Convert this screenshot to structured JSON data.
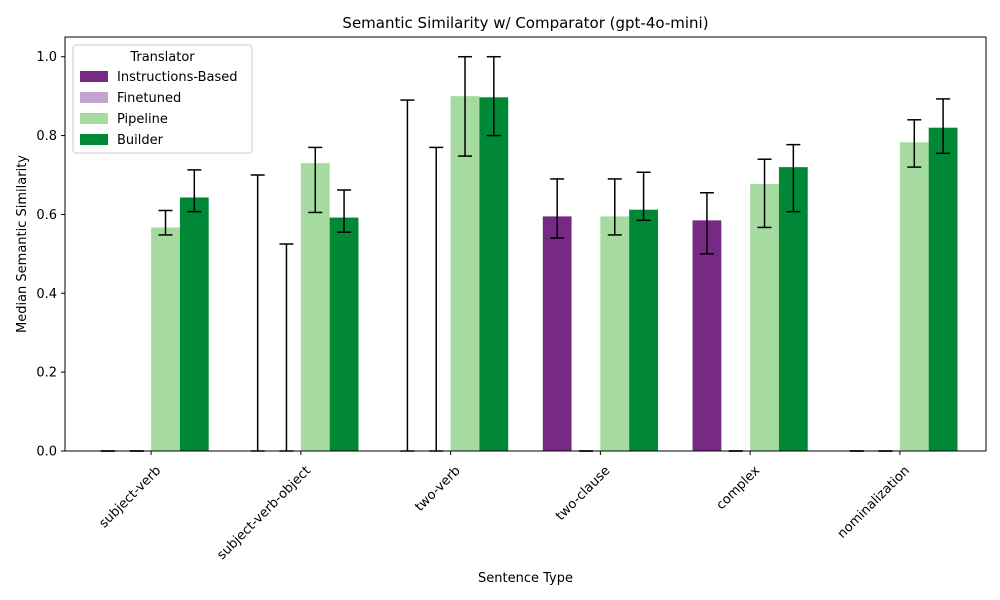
{
  "chart_data": {
    "type": "bar",
    "title": "Semantic Similarity w/ Comparator (gpt-4o-mini)",
    "xlabel": "Sentence Type",
    "ylabel": "Median Semantic Similarity",
    "ylim": [
      0,
      1.05
    ],
    "yticks": [
      "0.0",
      "0.2",
      "0.4",
      "0.6",
      "0.8",
      "1.0"
    ],
    "categories": [
      "subject-verb",
      "subject-verb-object",
      "two-verb",
      "two-clause",
      "complex",
      "nominalization"
    ],
    "legend": {
      "title": "Translator",
      "placement": "top-left"
    },
    "series": [
      {
        "name": "Instructions-Based",
        "color": "#762a83",
        "values": [
          0.0,
          0.0,
          0.0,
          0.595,
          0.585,
          0.0
        ],
        "err_low": [
          0.0,
          0.0,
          0.0,
          0.54,
          0.5,
          0.0
        ],
        "err_high": [
          0.0,
          0.7,
          0.89,
          0.69,
          0.655,
          0.0
        ]
      },
      {
        "name": "Finetuned",
        "color": "#c2a5cf",
        "values": [
          0.0,
          0.0,
          0.0,
          0.0,
          0.0,
          0.0
        ],
        "err_low": [
          0.0,
          0.0,
          0.0,
          0.0,
          0.0,
          0.0
        ],
        "err_high": [
          0.0,
          0.525,
          0.77,
          0.0,
          0.0,
          0.0
        ]
      },
      {
        "name": "Pipeline",
        "color": "#a6dba0",
        "values": [
          0.567,
          0.73,
          0.9,
          0.595,
          0.677,
          0.783
        ],
        "err_low": [
          0.548,
          0.605,
          0.748,
          0.548,
          0.567,
          0.72
        ],
        "err_high": [
          0.61,
          0.77,
          1.0,
          0.69,
          0.74,
          0.84
        ]
      },
      {
        "name": "Builder",
        "color": "#008837",
        "values": [
          0.643,
          0.592,
          0.897,
          0.612,
          0.72,
          0.82
        ],
        "err_low": [
          0.607,
          0.555,
          0.8,
          0.585,
          0.607,
          0.755
        ],
        "err_high": [
          0.713,
          0.662,
          1.0,
          0.707,
          0.777,
          0.893
        ]
      }
    ]
  }
}
